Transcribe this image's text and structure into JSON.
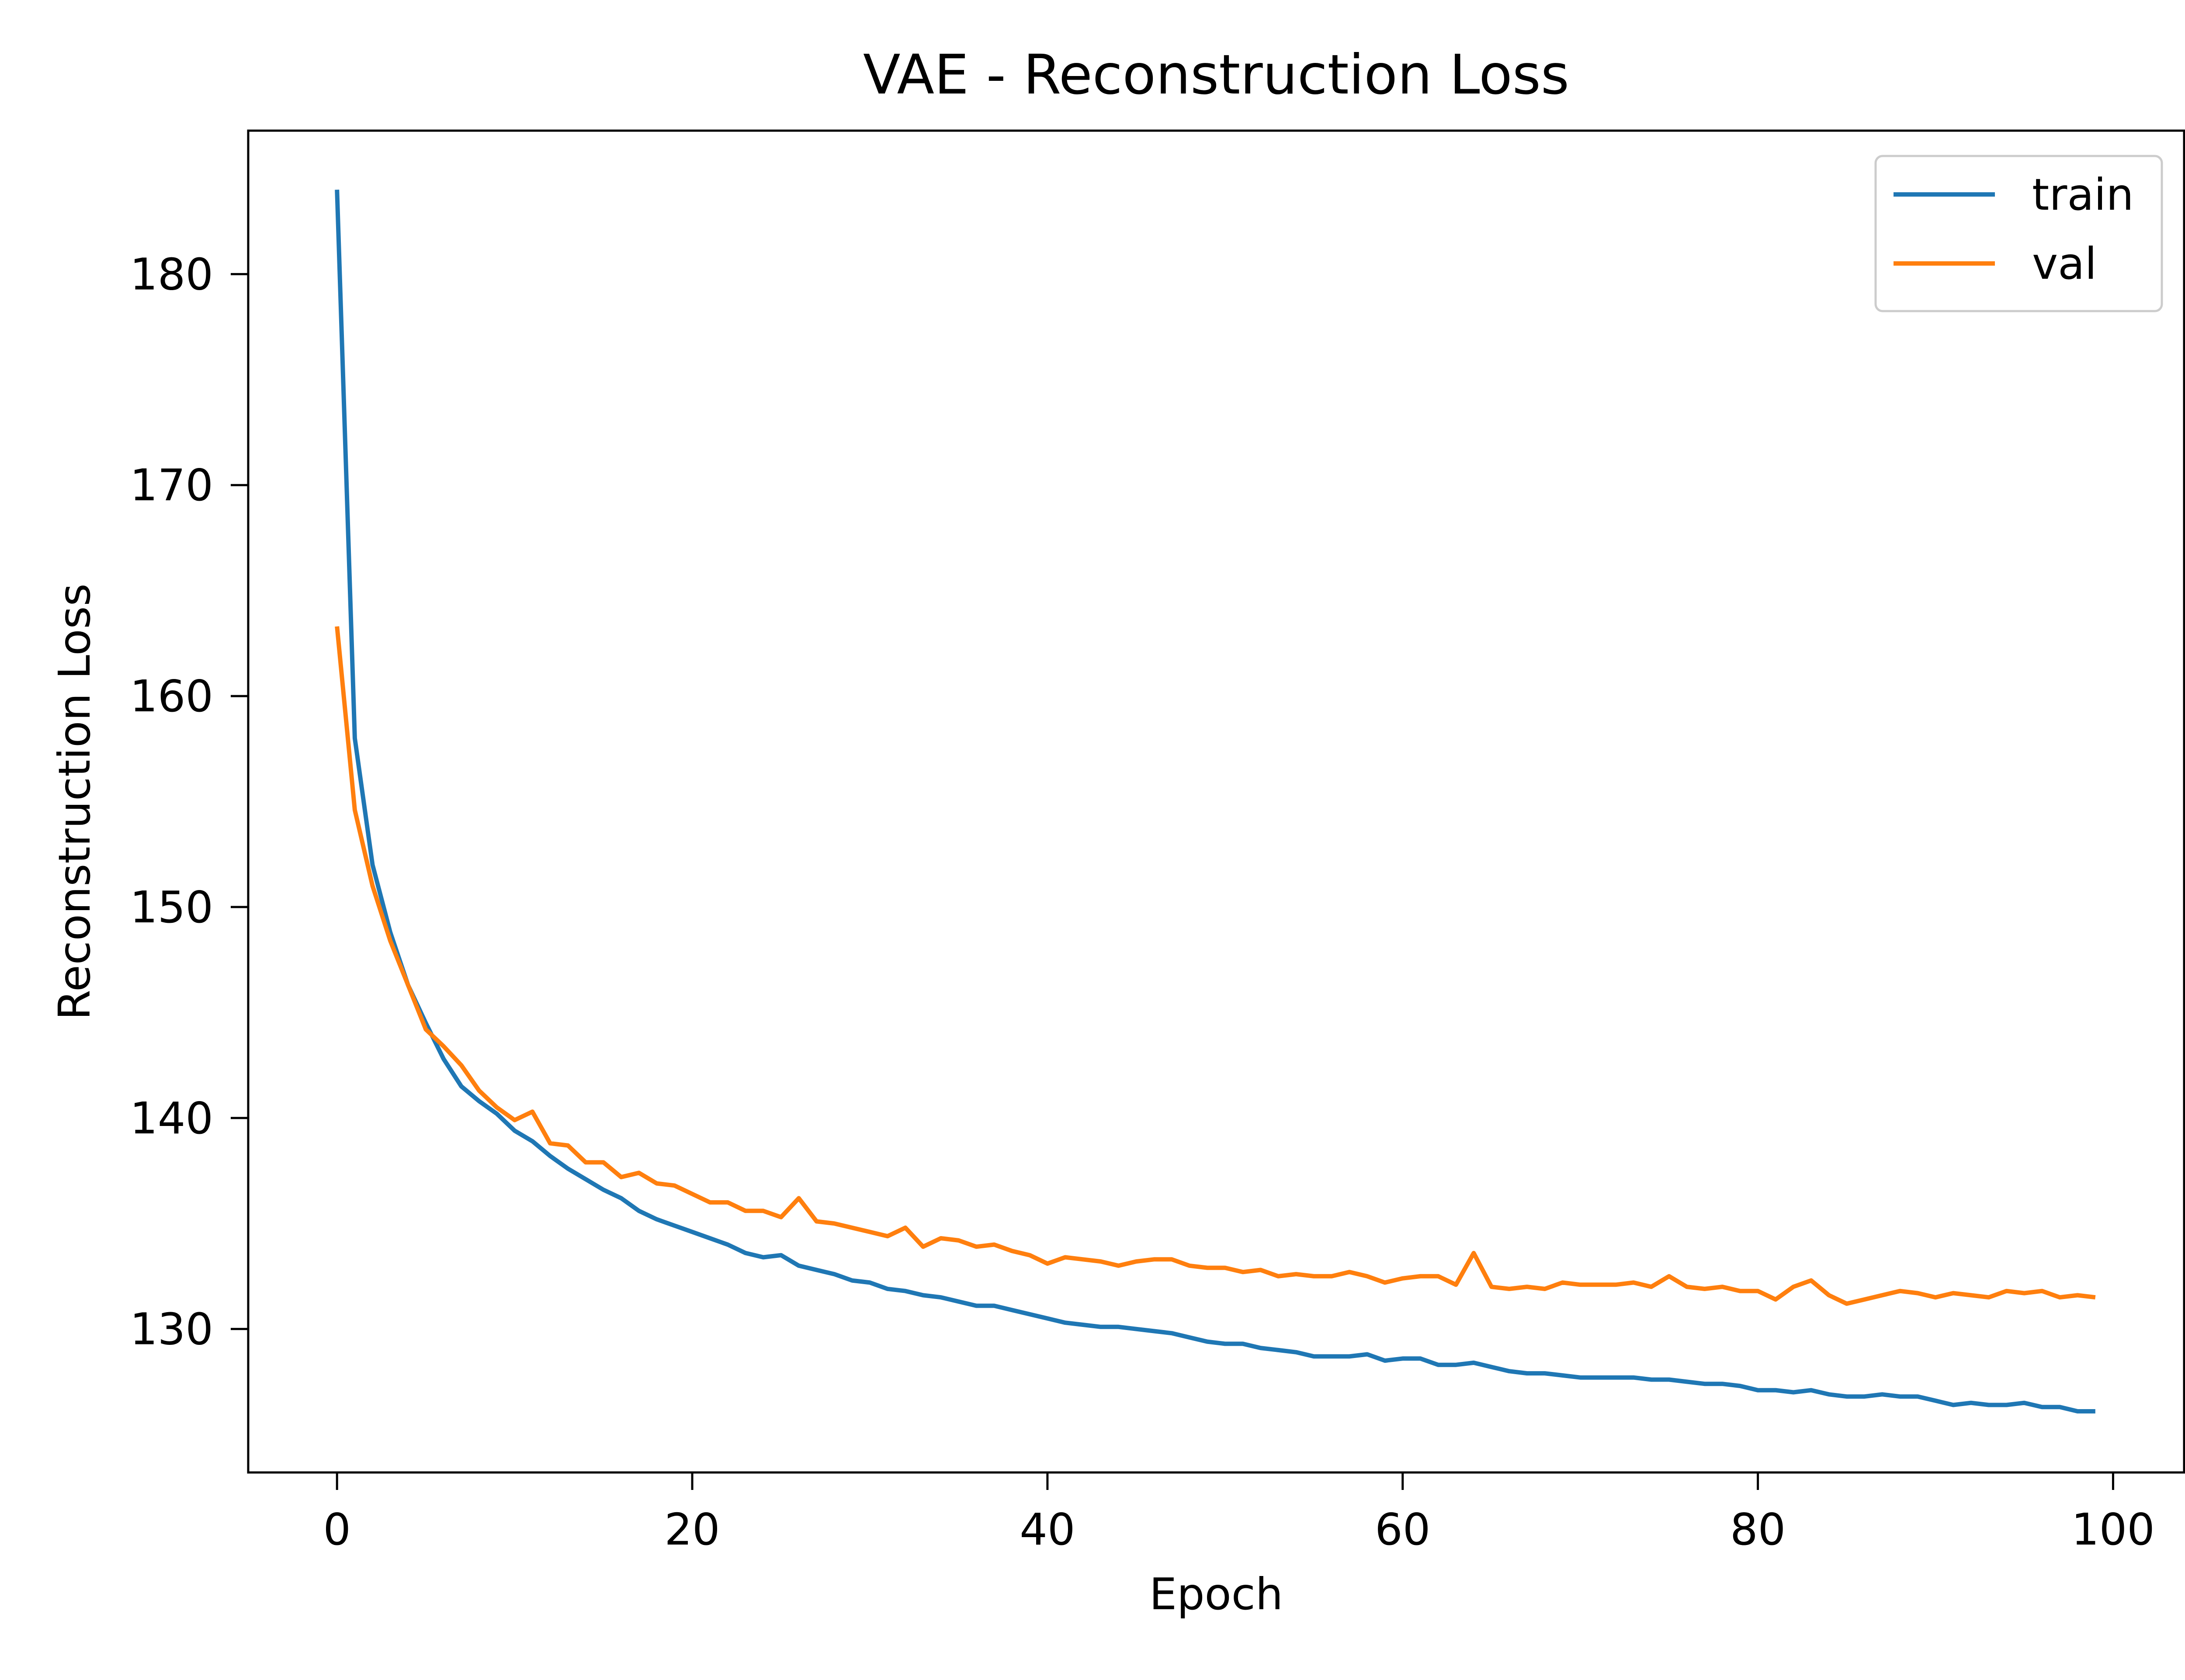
{
  "chart_data": {
    "type": "line",
    "title": "VAE - Reconstruction Loss",
    "xlabel": "Epoch",
    "ylabel": "Reconstruction Loss",
    "xlim": [
      -5,
      104
    ],
    "ylim": [
      123.2,
      186.8
    ],
    "xticks": [
      0,
      20,
      40,
      60,
      80,
      100
    ],
    "yticks": [
      130,
      140,
      150,
      160,
      170,
      180
    ],
    "grid": false,
    "legend_position": "top-right",
    "series": [
      {
        "name": "train",
        "color": "#1f77b4",
        "values": [
          184.0,
          158.0,
          152.0,
          148.8,
          146.3,
          144.5,
          142.8,
          141.5,
          140.8,
          140.2,
          139.4,
          138.9,
          138.2,
          137.6,
          137.1,
          136.6,
          136.2,
          135.6,
          135.2,
          134.9,
          134.6,
          134.3,
          134.0,
          133.6,
          133.4,
          133.5,
          133.0,
          132.8,
          132.6,
          132.3,
          132.2,
          131.9,
          131.8,
          131.6,
          131.5,
          131.3,
          131.1,
          131.1,
          130.9,
          130.7,
          130.5,
          130.3,
          130.2,
          130.1,
          130.1,
          130.0,
          129.9,
          129.8,
          129.6,
          129.4,
          129.3,
          129.3,
          129.1,
          129.0,
          128.9,
          128.7,
          128.7,
          128.7,
          128.8,
          128.5,
          128.6,
          128.6,
          128.3,
          128.3,
          128.4,
          128.2,
          128.0,
          127.9,
          127.9,
          127.8,
          127.7,
          127.7,
          127.7,
          127.7,
          127.6,
          127.6,
          127.5,
          127.4,
          127.4,
          127.3,
          127.1,
          127.1,
          127.0,
          127.1,
          126.9,
          126.8,
          126.8,
          126.9,
          126.8,
          126.8,
          126.6,
          126.4,
          126.5,
          126.4,
          126.4,
          126.5,
          126.3,
          126.3,
          126.1,
          126.1
        ]
      },
      {
        "name": "val",
        "color": "#ff7f0e",
        "values": [
          163.3,
          154.6,
          151.0,
          148.4,
          146.3,
          144.2,
          143.4,
          142.5,
          141.3,
          140.5,
          139.9,
          140.3,
          138.8,
          138.7,
          137.9,
          137.9,
          137.2,
          137.4,
          136.9,
          136.8,
          136.4,
          136.0,
          136.0,
          135.6,
          135.6,
          135.3,
          136.2,
          135.1,
          135.0,
          134.8,
          134.6,
          134.4,
          134.8,
          133.9,
          134.3,
          134.2,
          133.9,
          134.0,
          133.7,
          133.5,
          133.1,
          133.4,
          133.3,
          133.2,
          133.0,
          133.2,
          133.3,
          133.3,
          133.0,
          132.9,
          132.9,
          132.7,
          132.8,
          132.5,
          132.6,
          132.5,
          132.5,
          132.7,
          132.5,
          132.2,
          132.4,
          132.5,
          132.5,
          132.1,
          133.6,
          132.0,
          131.9,
          132.0,
          131.9,
          132.2,
          132.1,
          132.1,
          132.1,
          132.2,
          132.0,
          132.5,
          132.0,
          131.9,
          132.0,
          131.8,
          131.8,
          131.4,
          132.0,
          132.3,
          131.6,
          131.2,
          131.4,
          131.6,
          131.8,
          131.7,
          131.5,
          131.7,
          131.6,
          131.5,
          131.8,
          131.7,
          131.8,
          131.5,
          131.6,
          131.5
        ]
      }
    ]
  }
}
